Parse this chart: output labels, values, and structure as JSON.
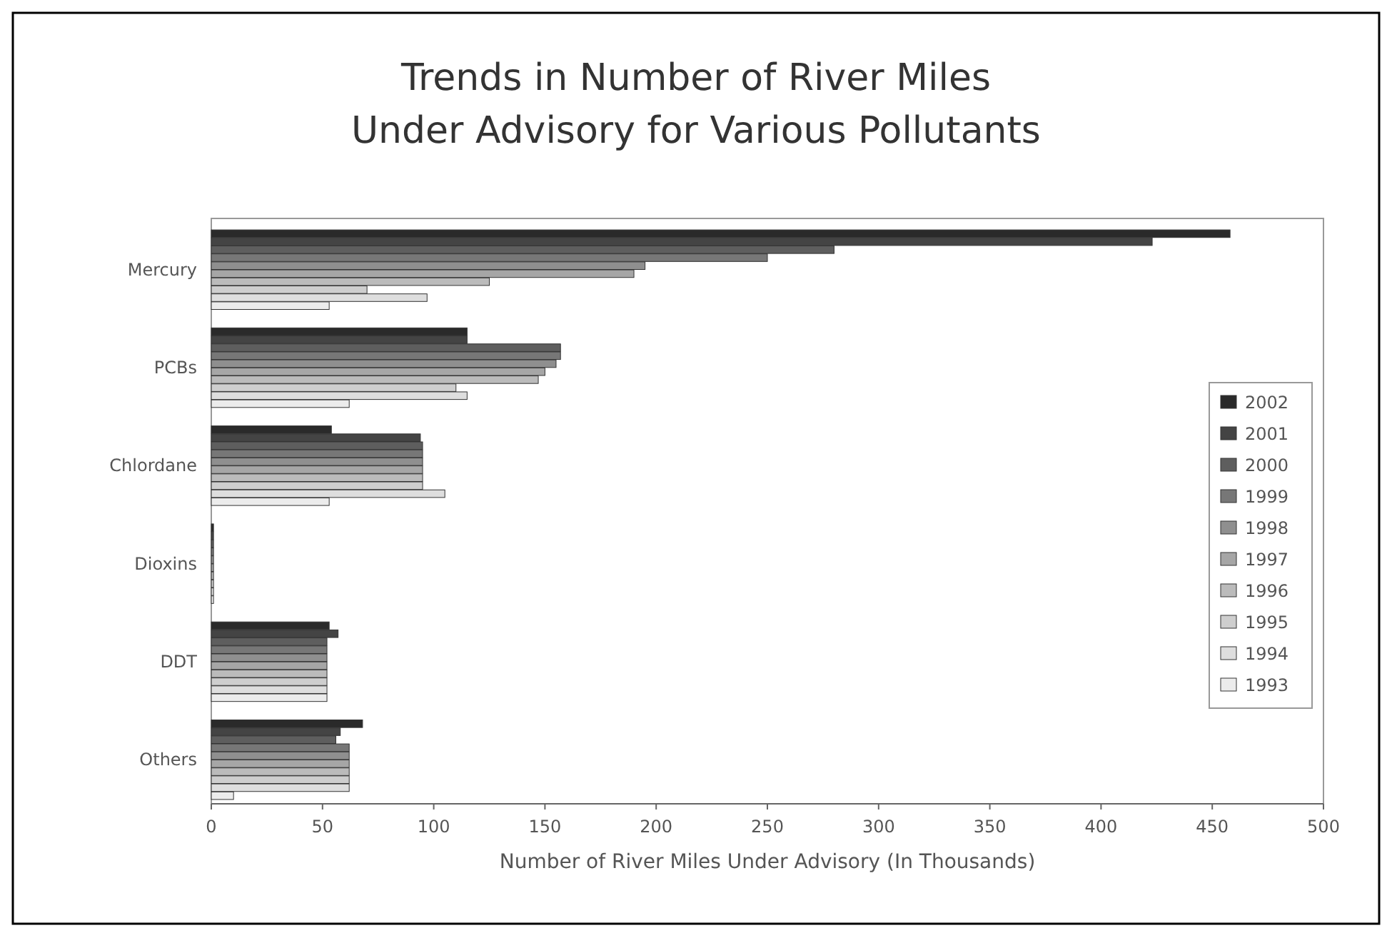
{
  "chart_data": {
    "type": "bar",
    "orientation": "horizontal",
    "title": "Trends in Number of River Miles Under Advisory for Various Pollutants",
    "xlabel": "Number of River Miles Under Advisory (In Thousands)",
    "categories": [
      "Mercury",
      "PCBs",
      "Chlordane",
      "Dioxins",
      "DDT",
      "Others"
    ],
    "xlim": [
      0,
      500
    ],
    "xticks": [
      0,
      50,
      100,
      150,
      200,
      250,
      300,
      350,
      400,
      450,
      500
    ],
    "legend": "right",
    "grid": false,
    "series": [
      {
        "name": "2002",
        "color": "#2a2a2a",
        "values": [
          458,
          115,
          54,
          1,
          53,
          68
        ]
      },
      {
        "name": "2001",
        "color": "#444444",
        "values": [
          423,
          115,
          94,
          1,
          57,
          58
        ]
      },
      {
        "name": "2000",
        "color": "#5e5e5e",
        "values": [
          280,
          157,
          95,
          1,
          52,
          56
        ]
      },
      {
        "name": "1999",
        "color": "#777777",
        "values": [
          250,
          157,
          95,
          1,
          52,
          62
        ]
      },
      {
        "name": "1998",
        "color": "#8f8f8f",
        "values": [
          195,
          155,
          95,
          1,
          52,
          62
        ]
      },
      {
        "name": "1997",
        "color": "#a6a6a6",
        "values": [
          190,
          150,
          95,
          1,
          52,
          62
        ]
      },
      {
        "name": "1996",
        "color": "#bbbbbb",
        "values": [
          125,
          147,
          95,
          1,
          52,
          62
        ]
      },
      {
        "name": "1995",
        "color": "#cecece",
        "values": [
          70,
          110,
          95,
          1,
          52,
          62
        ]
      },
      {
        "name": "1994",
        "color": "#dedede",
        "values": [
          97,
          115,
          105,
          1,
          52,
          62
        ]
      },
      {
        "name": "1993",
        "color": "#ececec",
        "values": [
          53,
          62,
          53,
          1,
          52,
          10
        ]
      }
    ]
  }
}
